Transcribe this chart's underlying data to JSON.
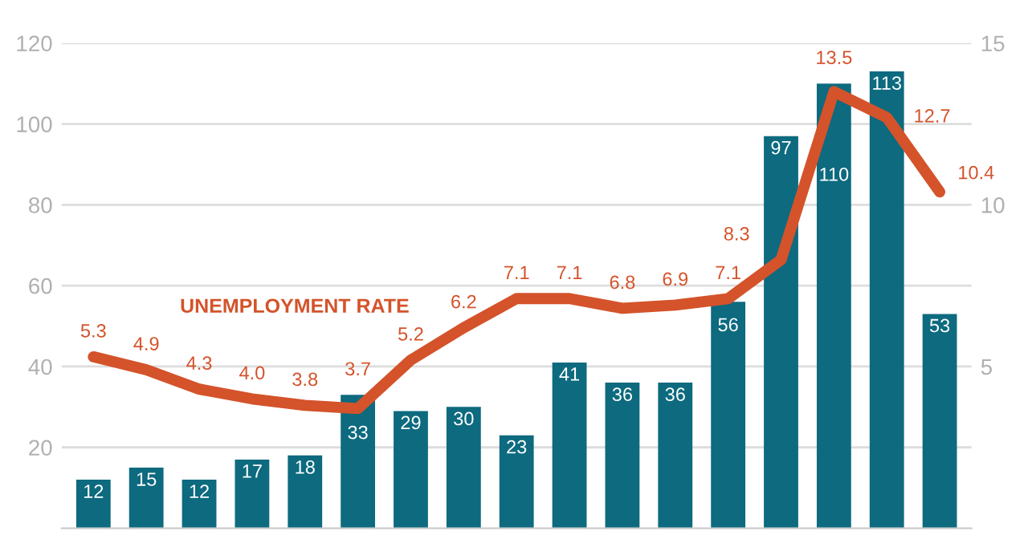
{
  "chart_data": {
    "type": "bar",
    "categories": [
      null,
      null,
      null,
      null,
      null,
      null,
      null,
      null,
      null,
      null,
      null,
      null,
      null,
      null,
      null,
      null,
      null
    ],
    "series": [
      {
        "color": "#0d6a7f",
        "values": [
          12,
          15,
          12,
          17,
          18,
          33,
          29,
          30,
          23,
          41,
          36,
          36,
          56,
          97,
          110,
          113,
          53
        ]
      },
      {
        "type": "line",
        "axis": "y2",
        "name": "UNEMPLOYMENT RATE",
        "color": "#d4532b",
        "values": [
          5.3,
          4.9,
          4.3,
          4.0,
          3.8,
          3.7,
          5.2,
          6.2,
          7.1,
          7.1,
          6.8,
          6.9,
          7.1,
          8.3,
          13.5,
          12.7,
          10.4
        ],
        "value_labels": [
          "5.3",
          "4.9",
          "4.3",
          "4.0",
          "3.8",
          "3.7",
          "5.2",
          "6.2",
          "7.1",
          "7.1",
          "6.8",
          "6.9",
          "7.1",
          "8.3",
          "13.5",
          "12.7",
          "10.4"
        ]
      }
    ],
    "ylim": [
      0,
      120
    ],
    "yticks": [
      20,
      40,
      60,
      80,
      100,
      120
    ],
    "y2lim": [
      0,
      15
    ],
    "y2ticks": [
      5,
      10,
      15
    ],
    "grid": "y",
    "data_labels": true,
    "legend": false,
    "marker": "none",
    "line_style": "solid"
  }
}
